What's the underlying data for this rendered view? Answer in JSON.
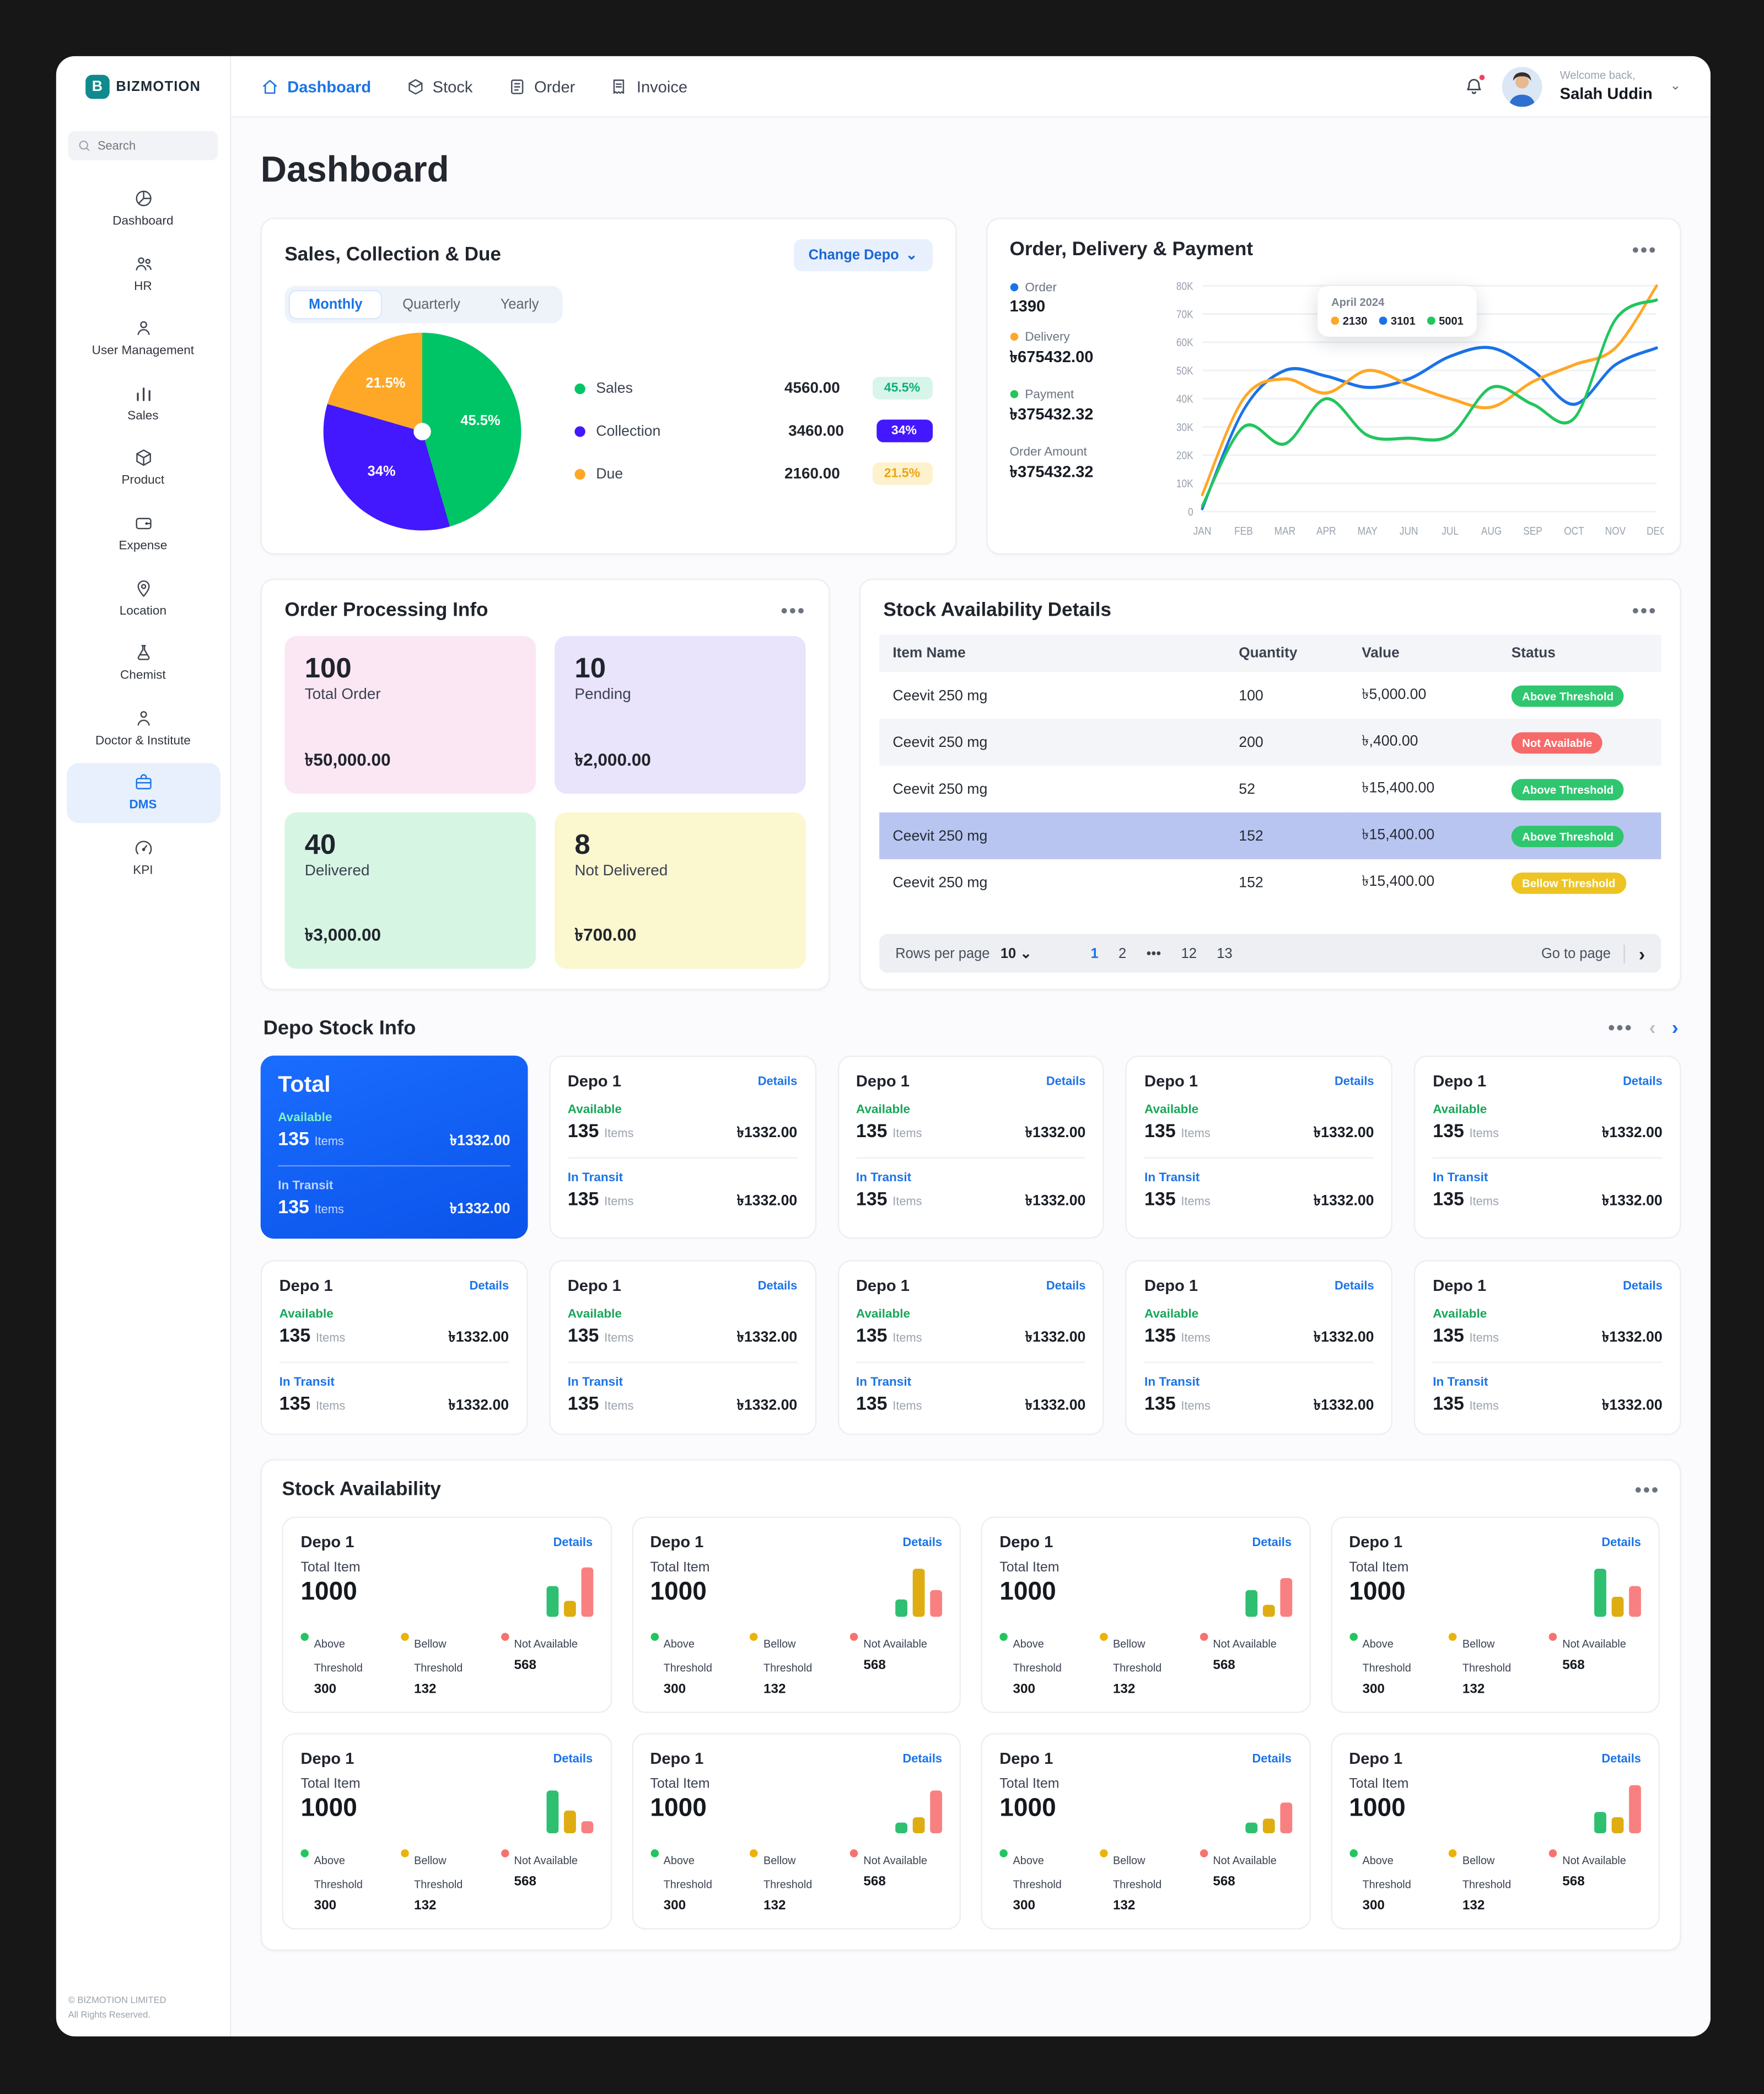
{
  "sidebar": {
    "logo_text": "BIZMOTION",
    "logo_letter": "B",
    "search_placeholder": "Search",
    "items": [
      {
        "label": "Dashboard",
        "icon": "dashboard-icon",
        "active": false
      },
      {
        "label": "HR",
        "icon": "hr-people-icon",
        "active": false
      },
      {
        "label": "User Management",
        "icon": "user-icon",
        "active": false
      },
      {
        "label": "Sales",
        "icon": "bar-chart-icon",
        "active": false
      },
      {
        "label": "Product",
        "icon": "box-icon",
        "active": false
      },
      {
        "label": "Expense",
        "icon": "wallet-icon",
        "active": false
      },
      {
        "label": "Location",
        "icon": "pin-icon",
        "active": false
      },
      {
        "label": "Chemist",
        "icon": "flask-icon",
        "active": false
      },
      {
        "label": "Doctor & Institute",
        "icon": "person-icon",
        "active": false
      },
      {
        "label": "DMS",
        "icon": "briefcase-icon",
        "active": true
      },
      {
        "label": "KPI",
        "icon": "gauge-icon",
        "active": false
      }
    ],
    "footer_line1": "© BIZMOTION LIMITED",
    "footer_line2": "All Rights Reserved."
  },
  "topbar": {
    "tabs": [
      {
        "label": "Dashboard",
        "icon": "home-icon",
        "active": true
      },
      {
        "label": "Stock",
        "icon": "stock-box-icon",
        "active": false
      },
      {
        "label": "Order",
        "icon": "order-book-icon",
        "active": false
      },
      {
        "label": "Invoice",
        "icon": "invoice-receipt-icon",
        "active": false
      }
    ],
    "welcome": "Welcome back,",
    "user_name": "Salah Uddin"
  },
  "page_title": "Dashboard",
  "sales_card": {
    "title": "Sales, Collection & Due",
    "change_depo_label": "Change Depo",
    "tabs": [
      "Monthly",
      "Quarterly",
      "Yearly"
    ],
    "active_tab": "Monthly",
    "chart_data": {
      "type": "pie",
      "labels": [
        "Sales",
        "Collection",
        "Due"
      ],
      "values": [
        45.5,
        34,
        21.5
      ],
      "slice_labels": [
        "45.5%",
        "34%",
        "21.5%"
      ],
      "colors": [
        "#00C566",
        "#4318FF",
        "#FFA726"
      ]
    },
    "legend": [
      {
        "label": "Sales",
        "value": "4560.00",
        "pct": "45.5%"
      },
      {
        "label": "Collection",
        "value": "3460.00",
        "pct": "34%"
      },
      {
        "label": "Due",
        "value": "2160.00",
        "pct": "21.5%"
      }
    ]
  },
  "order_card": {
    "title": "Order, Delivery & Payment",
    "stats": [
      {
        "label": "Order",
        "value": "1390",
        "color": "#1A73E8"
      },
      {
        "label": "Delivery",
        "value": "৳675432.00",
        "color": "#FFA726"
      },
      {
        "label": "Payment",
        "value": "৳375432.32",
        "color": "#22C55E"
      },
      {
        "label": "Order Amount",
        "value": "৳375432.32",
        "color": ""
      }
    ],
    "tooltip": {
      "title": "April 2024",
      "items": [
        {
          "value": "2130",
          "color": "#FFA726"
        },
        {
          "value": "3101",
          "color": "#1A73E8"
        },
        {
          "value": "5001",
          "color": "#22C55E"
        }
      ]
    },
    "y_ticks": [
      "80K",
      "70K",
      "60K",
      "50K",
      "40K",
      "30K",
      "20K",
      "10K",
      "0"
    ],
    "chart_data": {
      "type": "line",
      "x": [
        "JAN",
        "FEB",
        "MAR",
        "APR",
        "MAY",
        "JUN",
        "JUL",
        "AUG",
        "SEP",
        "OCT",
        "NOV",
        "DEC"
      ],
      "ymax_k": 80,
      "ylim": [
        0,
        80000
      ],
      "series": [
        {
          "name": "Order",
          "color": "#1A73E8",
          "values": [
            1,
            36,
            50,
            48,
            44,
            47,
            55,
            58,
            50,
            38,
            52,
            58
          ]
        },
        {
          "name": "Delivery",
          "color": "#FFA726",
          "values": [
            6,
            40,
            47,
            42,
            50,
            45,
            40,
            37,
            46,
            52,
            58,
            80
          ]
        },
        {
          "name": "Payment",
          "color": "#22C55E",
          "values": [
            2,
            30,
            24,
            40,
            27,
            26,
            27,
            44,
            38,
            33,
            68,
            75
          ]
        }
      ]
    }
  },
  "processing_card": {
    "title": "Order Processing Info",
    "tiles": [
      {
        "count": "100",
        "label": "Total Order",
        "amount": "৳50,000.00"
      },
      {
        "count": "10",
        "label": "Pending",
        "amount": "৳2,000.00"
      },
      {
        "count": "40",
        "label": "Delivered",
        "amount": "৳3,000.00"
      },
      {
        "count": "8",
        "label": "Not Delivered",
        "amount": "৳700.00"
      }
    ]
  },
  "stock_table": {
    "title": "Stock Availability Details",
    "headers": [
      "Item Name",
      "Quantity",
      "Value",
      "Status"
    ],
    "rows": [
      {
        "name": "Ceevit 250 mg",
        "qty": "100",
        "value": "৳5,000.00",
        "status": "Above Threshold"
      },
      {
        "name": "Ceevit 250 mg",
        "qty": "200",
        "value": "৳,400.00",
        "status": "Not Available"
      },
      {
        "name": "Ceevit 250 mg",
        "qty": "52",
        "value": "৳15,400.00",
        "status": "Above Threshold"
      },
      {
        "name": "Ceevit 250 mg",
        "qty": "152",
        "value": "৳15,400.00",
        "status": "Above Threshold"
      },
      {
        "name": "Ceevit 250 mg",
        "qty": "152",
        "value": "৳15,400.00",
        "status": "Bellow Threshold"
      }
    ],
    "footer": {
      "rows_per_page_label": "Rows per page",
      "rows_per_page_value": "10",
      "pages": [
        "1",
        "2",
        "•••",
        "12",
        "13"
      ],
      "active_page": "1",
      "go_to_page_label": "Go to page"
    }
  },
  "depo_stock": {
    "title": "Depo Stock Info",
    "total_card": {
      "title": "Total",
      "available_label": "Available",
      "in_transit_label": "In Transit",
      "count": "135",
      "unit": "Items",
      "amount": "৳1332.00"
    },
    "card": {
      "title": "Depo 1",
      "details": "Details",
      "available_label": "Available",
      "in_transit_label": "In Transit",
      "count": "135",
      "unit": "Items",
      "amount": "৳1332.00"
    }
  },
  "stock_availability": {
    "title": "Stock Availability",
    "card_title": "Depo 1",
    "details_label": "Details",
    "total_item_label": "Total Item",
    "total_item_value": "1000",
    "bar_colors": [
      "#2FBF71",
      "#DFAD12",
      "#F98080"
    ],
    "legend": [
      {
        "label": "Above Threshold",
        "value": "300",
        "color": "#22C55E"
      },
      {
        "label": "Bellow Threshold",
        "value": "132",
        "color": "#EAB308"
      },
      {
        "label": "Not Available",
        "value": "568",
        "color": "#F87171"
      }
    ],
    "chart_data": {
      "type": "bar",
      "note": "mini bars per depo card, relative heights %",
      "cards": [
        {
          "bars": [
            55,
            28,
            88
          ]
        },
        {
          "bars": [
            30,
            85,
            48
          ]
        },
        {
          "bars": [
            48,
            22,
            70
          ]
        },
        {
          "bars": [
            85,
            35,
            55
          ]
        },
        {
          "bars": [
            75,
            40,
            22
          ]
        },
        {
          "bars": [
            18,
            28,
            75
          ]
        },
        {
          "bars": [
            20,
            26,
            55
          ]
        },
        {
          "bars": [
            38,
            28,
            85
          ]
        }
      ]
    }
  }
}
